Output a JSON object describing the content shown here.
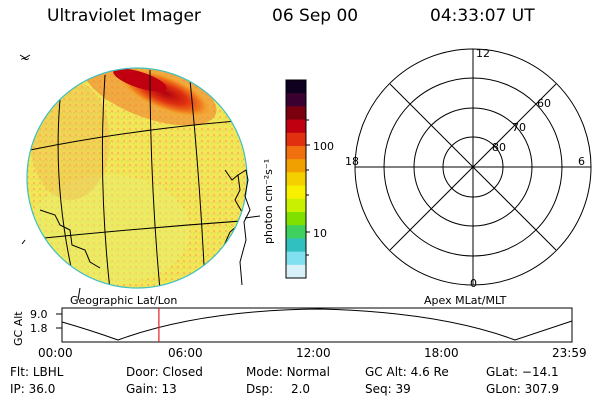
{
  "header": {
    "instrument": "Ultraviolet Imager",
    "date": "06 Sep 00",
    "time": "04:33:07 UT"
  },
  "colorbar": {
    "unit_label": "photon cm⁻²s⁻¹",
    "ticks": [
      "100",
      "10"
    ],
    "colors_top_to_bottom": [
      "#100020",
      "#3a0030",
      "#7a0010",
      "#c00010",
      "#e03010",
      "#f07010",
      "#f0a000",
      "#f5d000",
      "#f8f000",
      "#c8f000",
      "#80e000",
      "#40d060",
      "#30c0c0",
      "#80e0f0",
      "#d8f0f8"
    ]
  },
  "polar": {
    "labels": {
      "top": "12",
      "bottom": "0",
      "left": "18",
      "right": "6"
    },
    "lat_labels": [
      "60",
      "70",
      "80"
    ]
  },
  "timeline": {
    "left_label": "Geographic Lat/Lon",
    "right_label": "Apex MLat/MLT",
    "axis_title": "GC Alt",
    "y_ticks": [
      "9.0",
      "1.8"
    ],
    "x_ticks": [
      "00:00",
      "06:00",
      "12:00",
      "18:00",
      "23:59"
    ],
    "current_time_fraction": 0.19
  },
  "status": {
    "row1": [
      {
        "key": "Flt:",
        "value": "LBHL"
      },
      {
        "key": "Door:",
        "value": "Closed"
      },
      {
        "key": "Mode:",
        "value": "Normal"
      },
      {
        "key": "GC Alt:",
        "value": "4.6 Re"
      },
      {
        "key": "GLat:",
        "value": "−14.1"
      }
    ],
    "row2": [
      {
        "key": "IP:",
        "value": "36.0"
      },
      {
        "key": "Gain:",
        "value": "13"
      },
      {
        "key": "Dsp:",
        "value": "2.0"
      },
      {
        "key": "Seq:",
        "value": "39"
      },
      {
        "key": "GLon:",
        "value": "307.9"
      }
    ]
  },
  "colors": {
    "accent_line": "#e02020",
    "earth_limb": "#40c0c0"
  }
}
